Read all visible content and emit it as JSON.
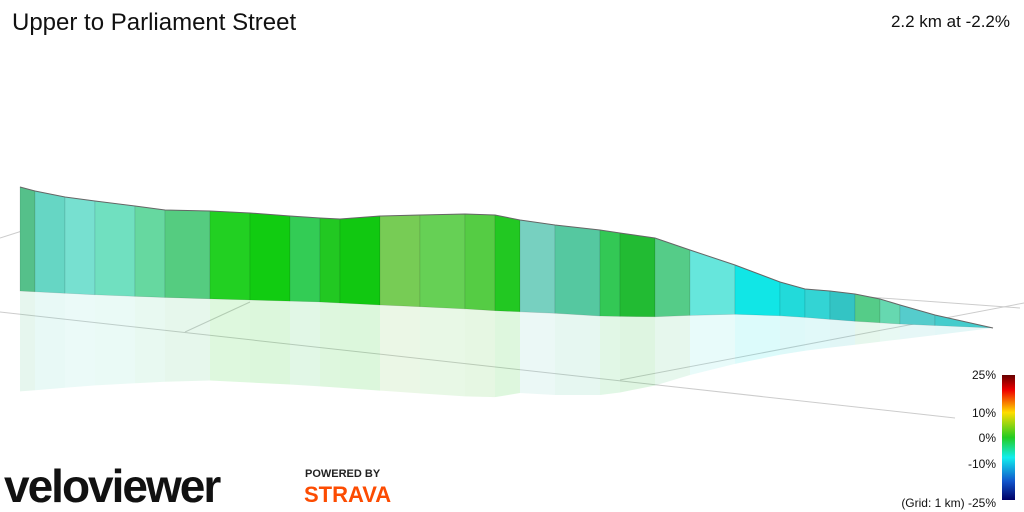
{
  "header": {
    "title": "Upper to Parliament Street",
    "summary": "2.2 km at -2.2%"
  },
  "legend": {
    "labels": [
      "25%",
      "10%",
      "0%",
      "-10%",
      "(Grid: 1 km) -25%"
    ]
  },
  "branding": {
    "logo": "veloviewer",
    "powered_by": "POWERED BY",
    "partner": "STRAVA"
  }
}
